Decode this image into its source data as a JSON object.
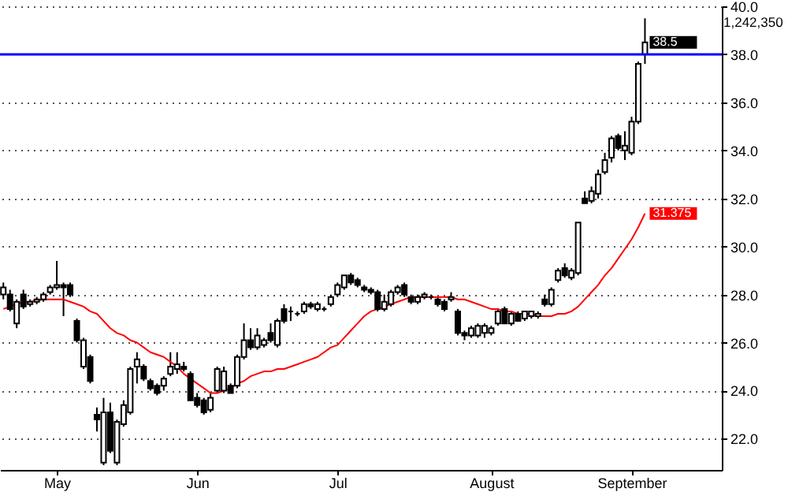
{
  "chart_data": {
    "type": "candlestick",
    "categories": [
      null,
      null,
      null,
      null,
      null,
      null,
      null,
      null,
      "May",
      null,
      null,
      null,
      null,
      null,
      null,
      null,
      null,
      null,
      null,
      null,
      null,
      null,
      null,
      null,
      null,
      null,
      null,
      null,
      null,
      "Jun",
      null,
      null,
      null,
      null,
      null,
      null,
      null,
      null,
      null,
      null,
      null,
      null,
      null,
      null,
      null,
      null,
      null,
      null,
      null,
      null,
      "Jul",
      null,
      null,
      null,
      null,
      null,
      null,
      null,
      null,
      null,
      null,
      null,
      null,
      null,
      null,
      null,
      null,
      null,
      null,
      null,
      null,
      null,
      null,
      "August",
      null,
      null,
      null,
      null,
      null,
      null,
      null,
      null,
      null,
      null,
      null,
      null,
      null,
      null,
      null,
      null,
      null,
      null,
      null,
      null,
      "September",
      null,
      null
    ],
    "ohlc": [
      [
        28.0,
        28.5,
        27.8,
        28.3
      ],
      [
        28.0,
        28.2,
        27.3,
        27.4
      ],
      [
        26.8,
        27.8,
        26.6,
        27.7
      ],
      [
        28.0,
        28.2,
        27.4,
        27.5
      ],
      [
        27.6,
        27.8,
        27.5,
        27.7
      ],
      [
        27.7,
        27.9,
        27.6,
        27.8
      ],
      [
        27.8,
        28.1,
        27.7,
        28.0
      ],
      [
        28.1,
        28.4,
        28.0,
        28.3
      ],
      [
        28.3,
        29.4,
        28.2,
        28.4
      ],
      [
        28.4,
        28.5,
        27.1,
        28.3
      ],
      [
        28.4,
        28.5,
        27.9,
        28.0
      ],
      [
        26.9,
        27.0,
        26.0,
        26.1
      ],
      [
        25.0,
        26.2,
        24.9,
        26.1
      ],
      [
        25.4,
        25.5,
        24.3,
        24.4
      ],
      [
        23.0,
        23.3,
        22.3,
        22.8
      ],
      [
        21.0,
        23.7,
        20.9,
        23.1
      ],
      [
        23.1,
        23.5,
        21.4,
        21.5
      ],
      [
        21.0,
        22.8,
        20.9,
        22.7
      ],
      [
        22.6,
        23.6,
        22.5,
        23.4
      ],
      [
        23.1,
        25.0,
        23.0,
        24.9
      ],
      [
        25.0,
        25.6,
        24.3,
        25.3
      ],
      [
        25.0,
        25.1,
        24.4,
        24.5
      ],
      [
        24.4,
        24.5,
        24.0,
        24.1
      ],
      [
        24.2,
        24.3,
        23.8,
        23.9
      ],
      [
        24.2,
        24.6,
        24.0,
        24.5
      ],
      [
        24.7,
        25.6,
        24.6,
        25.0
      ],
      [
        24.9,
        25.6,
        24.7,
        25.1
      ],
      [
        25.0,
        25.2,
        24.8,
        24.9
      ],
      [
        24.7,
        24.8,
        23.6,
        23.6
      ],
      [
        23.7,
        23.9,
        23.3,
        23.4
      ],
      [
        23.6,
        23.7,
        23.0,
        23.1
      ],
      [
        23.2,
        23.9,
        23.1,
        23.7
      ],
      [
        24.0,
        25.0,
        23.9,
        24.9
      ],
      [
        24.0,
        25.0,
        23.9,
        24.8
      ],
      [
        24.2,
        24.3,
        23.9,
        23.9
      ],
      [
        24.2,
        25.5,
        24.1,
        25.4
      ],
      [
        25.4,
        26.8,
        25.3,
        26.1
      ],
      [
        26.1,
        26.6,
        25.7,
        25.8
      ],
      [
        25.8,
        26.6,
        25.7,
        26.3
      ],
      [
        25.9,
        26.2,
        25.8,
        26.1
      ],
      [
        26.4,
        26.8,
        26.0,
        26.1
      ],
      [
        25.9,
        27.0,
        25.8,
        26.9
      ],
      [
        27.4,
        27.6,
        26.8,
        26.9
      ],
      [
        27.3,
        27.5,
        26.9,
        27.3
      ],
      [
        27.2,
        27.3,
        27.1,
        27.2
      ],
      [
        27.3,
        27.7,
        27.2,
        27.6
      ],
      [
        27.6,
        27.7,
        27.4,
        27.5
      ],
      [
        27.4,
        27.7,
        27.3,
        27.6
      ],
      [
        27.4,
        27.5,
        27.3,
        27.4
      ],
      [
        27.6,
        28.0,
        27.5,
        27.9
      ],
      [
        28.0,
        28.5,
        27.9,
        28.4
      ],
      [
        28.3,
        28.8,
        28.2,
        28.8
      ],
      [
        28.8,
        28.9,
        28.4,
        28.5
      ],
      [
        28.6,
        28.7,
        28.3,
        28.4
      ],
      [
        28.3,
        28.4,
        28.1,
        28.2
      ],
      [
        28.2,
        28.3,
        28.0,
        28.1
      ],
      [
        28.1,
        28.2,
        27.3,
        27.4
      ],
      [
        27.4,
        28.0,
        27.3,
        27.7
      ],
      [
        27.6,
        28.2,
        27.5,
        28.1
      ],
      [
        28.1,
        28.4,
        28.0,
        28.3
      ],
      [
        28.4,
        28.5,
        27.9,
        28.0
      ],
      [
        27.9,
        28.0,
        27.6,
        27.7
      ],
      [
        27.7,
        28.0,
        27.6,
        27.9
      ],
      [
        27.9,
        28.1,
        27.8,
        28.0
      ],
      [
        27.9,
        28.0,
        27.8,
        27.9
      ],
      [
        27.8,
        27.9,
        27.5,
        27.6
      ],
      [
        27.7,
        27.8,
        27.3,
        27.4
      ],
      [
        27.8,
        28.1,
        27.7,
        27.9
      ],
      [
        27.3,
        27.4,
        26.3,
        26.4
      ],
      [
        26.4,
        26.5,
        26.1,
        26.3
      ],
      [
        26.3,
        26.7,
        26.2,
        26.6
      ],
      [
        26.3,
        26.8,
        26.2,
        26.7
      ],
      [
        26.4,
        26.8,
        26.2,
        26.7
      ],
      [
        26.4,
        26.7,
        26.3,
        26.6
      ],
      [
        26.8,
        27.4,
        26.7,
        27.3
      ],
      [
        27.4,
        27.5,
        26.8,
        26.8
      ],
      [
        26.8,
        27.3,
        26.7,
        27.2
      ],
      [
        27.2,
        27.3,
        26.9,
        26.9
      ],
      [
        27.0,
        27.3,
        26.9,
        27.3
      ],
      [
        27.1,
        27.3,
        27.0,
        27.3
      ],
      [
        27.1,
        27.3,
        27.0,
        27.2
      ],
      [
        27.8,
        28.0,
        27.5,
        27.6
      ],
      [
        27.6,
        28.3,
        27.5,
        28.2
      ],
      [
        28.6,
        29.1,
        28.5,
        29.0
      ],
      [
        29.1,
        29.3,
        28.7,
        28.8
      ],
      [
        28.7,
        29.1,
        28.6,
        29.0
      ],
      [
        28.9,
        31.0,
        28.8,
        31.0
      ],
      [
        32.0,
        32.3,
        31.8,
        31.8
      ],
      [
        31.9,
        32.5,
        31.8,
        32.3
      ],
      [
        32.2,
        33.2,
        32.0,
        33.0
      ],
      [
        33.1,
        33.9,
        33.0,
        33.6
      ],
      [
        33.7,
        34.6,
        33.5,
        34.5
      ],
      [
        34.6,
        34.7,
        34.0,
        34.1
      ],
      [
        34.0,
        34.8,
        33.6,
        34.2
      ],
      [
        33.9,
        35.4,
        33.8,
        35.2
      ],
      [
        35.2,
        37.7,
        35.1,
        37.6
      ],
      [
        38.0,
        39.5,
        37.6,
        38.5
      ]
    ],
    "value_labels": [
      null,
      null,
      null,
      null,
      null,
      null,
      null,
      null,
      null,
      null,
      null,
      null,
      null,
      null,
      null,
      null,
      null,
      null,
      null,
      null,
      null,
      null,
      null,
      null,
      null,
      null,
      null,
      null,
      null,
      null,
      null,
      null,
      null,
      null,
      null,
      null,
      null,
      null,
      null,
      null,
      null,
      null,
      null,
      null,
      null,
      null,
      null,
      null,
      null,
      null,
      null,
      null,
      null,
      null,
      null,
      null,
      null,
      null,
      null,
      null,
      null,
      null,
      null,
      null,
      null,
      null,
      null,
      null,
      null,
      null,
      null,
      null,
      null,
      null,
      null,
      null,
      null,
      null,
      null,
      null,
      null,
      null,
      null,
      null,
      null,
      null,
      null,
      null,
      null,
      null,
      null,
      null,
      null,
      null,
      null,
      null,
      "38.5"
    ],
    "series": [
      {
        "type": "line",
        "color": "#ff0000",
        "values": [
          27.4,
          27.5,
          27.6,
          27.7,
          27.7,
          27.75,
          27.8,
          27.8,
          27.8,
          27.8,
          27.7,
          27.6,
          27.5,
          27.3,
          27.2,
          26.9,
          26.6,
          26.4,
          26.3,
          26.1,
          26.0,
          25.8,
          25.6,
          25.5,
          25.4,
          25.2,
          25.0,
          24.7,
          24.5,
          24.3,
          24.1,
          23.9,
          23.9,
          24.0,
          24.1,
          24.3,
          24.4,
          24.6,
          24.7,
          24.8,
          24.8,
          24.9,
          24.9,
          25.0,
          25.1,
          25.2,
          25.3,
          25.4,
          25.6,
          25.8,
          25.9,
          26.2,
          26.5,
          26.8,
          27.1,
          27.3,
          27.4,
          27.5,
          27.6,
          27.7,
          27.8,
          27.9,
          27.9,
          27.9,
          27.9,
          27.9,
          27.9,
          27.9,
          27.8,
          27.8,
          27.7,
          27.6,
          27.5,
          27.4,
          27.4,
          27.3,
          27.3,
          27.2,
          27.2,
          27.2,
          27.1,
          27.1,
          27.1,
          27.2,
          27.2,
          27.3,
          27.5,
          27.8,
          28.1,
          28.4,
          28.8,
          29.1,
          29.5,
          29.9,
          30.3,
          30.8,
          31.375
        ],
        "value_labels": [
          null,
          null,
          null,
          null,
          null,
          null,
          null,
          null,
          null,
          null,
          null,
          null,
          null,
          null,
          null,
          null,
          null,
          null,
          null,
          null,
          null,
          null,
          null,
          null,
          null,
          null,
          null,
          null,
          null,
          null,
          null,
          null,
          null,
          null,
          null,
          null,
          null,
          null,
          null,
          null,
          null,
          null,
          null,
          null,
          null,
          null,
          null,
          null,
          null,
          null,
          null,
          null,
          null,
          null,
          null,
          null,
          null,
          null,
          null,
          null,
          null,
          null,
          null,
          null,
          null,
          null,
          null,
          null,
          null,
          null,
          null,
          null,
          null,
          null,
          null,
          null,
          null,
          null,
          null,
          null,
          null,
          null,
          null,
          null,
          null,
          null,
          null,
          null,
          null,
          null,
          null,
          null,
          null,
          null,
          null,
          null,
          "31.375"
        ]
      }
    ],
    "ylim": [
      20.7,
      40
    ],
    "yticks": [
      {
        "value": 22,
        "label": "22.0"
      },
      {
        "value": 24,
        "label": "24.0"
      },
      {
        "value": 26,
        "label": "26.0"
      },
      {
        "value": 28,
        "label": "28.0"
      },
      {
        "value": 30,
        "label": "30.0"
      },
      {
        "value": 32,
        "label": "32.0"
      },
      {
        "value": 34,
        "label": "34.0"
      },
      {
        "value": 36,
        "label": "36.0"
      },
      {
        "value": 38,
        "label": "38.0"
      },
      {
        "value": 40,
        "label": "40.0"
      }
    ],
    "grid": "y",
    "ref_lines": [
      {
        "axis": "y",
        "value": 38,
        "color": "#0000ff"
      }
    ],
    "annotations": [
      "1,242,350"
    ]
  }
}
